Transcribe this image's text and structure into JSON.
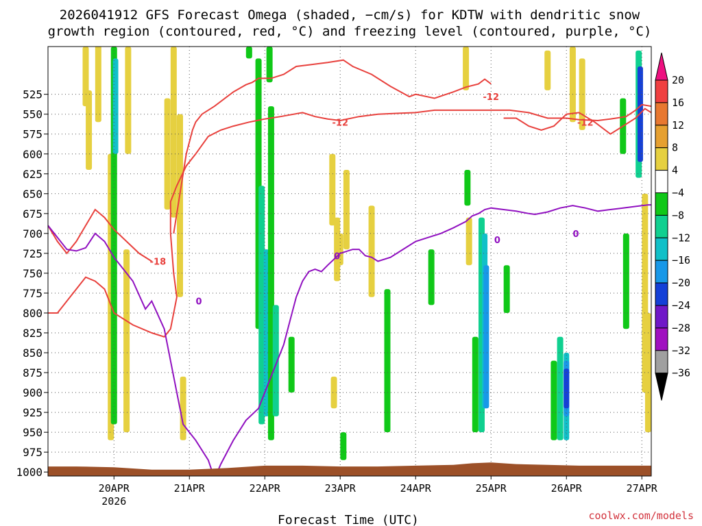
{
  "chart_data": {
    "type": "heatmap",
    "title_line1": "2026041912 GFS Forecast Omega (shaded, −cm/s) for KDTW with dendritic snow",
    "title_line2": "growth region (contoured, red, °C) and freezing level (contoured, purple, °C)",
    "xlabel": "Forecast Time (UTC)",
    "credit": "coolwx.com/models",
    "y_axis": {
      "unit": "hPa",
      "range": [
        1005,
        465
      ],
      "ticks": [
        525,
        550,
        575,
        600,
        625,
        650,
        675,
        700,
        725,
        750,
        775,
        800,
        825,
        850,
        875,
        900,
        925,
        950,
        975,
        1000
      ]
    },
    "x_axis": {
      "range_hours": [
        -9,
        183
      ],
      "ticks": [
        {
          "hour": 12,
          "label": "20APR",
          "sublabel": "2026"
        },
        {
          "hour": 36,
          "label": "21APR",
          "sublabel": ""
        },
        {
          "hour": 60,
          "label": "22APR",
          "sublabel": ""
        },
        {
          "hour": 84,
          "label": "23APR",
          "sublabel": ""
        },
        {
          "hour": 108,
          "label": "24APR",
          "sublabel": ""
        },
        {
          "hour": 132,
          "label": "25APR",
          "sublabel": ""
        },
        {
          "hour": 156,
          "label": "26APR",
          "sublabel": ""
        },
        {
          "hour": 180,
          "label": "27APR",
          "sublabel": ""
        }
      ]
    },
    "colorbar": {
      "labels": [
        "20",
        "16",
        "12",
        "8",
        "4",
        "−4",
        "−8",
        "−12",
        "−16",
        "−20",
        "−24",
        "−28",
        "−32",
        "−36"
      ],
      "colors": [
        "#ee1080",
        "#f04040",
        "#e87830",
        "#e6a030",
        "#e6d040",
        "#ffffff",
        "#10c818",
        "#10d090",
        "#10c0c8",
        "#1898e8",
        "#1440d8",
        "#7018c8",
        "#a010c0",
        "#a0a0a0",
        "#000000"
      ]
    },
    "omega_shading": [
      {
        "hour": 3,
        "p_top": 465,
        "p_bot": 540,
        "value": 5
      },
      {
        "hour": 4,
        "p_top": 520,
        "p_bot": 620,
        "value": 5
      },
      {
        "hour": 7,
        "p_top": 460,
        "p_bot": 560,
        "value": 6
      },
      {
        "hour": 11,
        "p_top": 600,
        "p_bot": 960,
        "value": 5
      },
      {
        "hour": 12,
        "p_top": 465,
        "p_bot": 940,
        "value": -7
      },
      {
        "hour": 12.5,
        "p_top": 480,
        "p_bot": 600,
        "value": -13
      },
      {
        "hour": 16,
        "p_top": 720,
        "p_bot": 950,
        "value": 5
      },
      {
        "hour": 16.5,
        "p_top": 465,
        "p_bot": 600,
        "value": 7
      },
      {
        "hour": 29,
        "p_top": 530,
        "p_bot": 670,
        "value": 6
      },
      {
        "hour": 31,
        "p_top": 465,
        "p_bot": 680,
        "value": 6
      },
      {
        "hour": 33,
        "p_top": 550,
        "p_bot": 780,
        "value": 5
      },
      {
        "hour": 34,
        "p_top": 880,
        "p_bot": 960,
        "value": 5
      },
      {
        "hour": 55,
        "p_top": 465,
        "p_bot": 480,
        "value": -6
      },
      {
        "hour": 58,
        "p_top": 480,
        "p_bot": 820,
        "value": -6
      },
      {
        "hour": 59,
        "p_top": 640,
        "p_bot": 940,
        "value": -8
      },
      {
        "hour": 60.5,
        "p_top": 720,
        "p_bot": 930,
        "value": -13
      },
      {
        "hour": 61.5,
        "p_top": 465,
        "p_bot": 510,
        "value": -6
      },
      {
        "hour": 62,
        "p_top": 540,
        "p_bot": 960,
        "value": -7
      },
      {
        "hour": 63.5,
        "p_top": 790,
        "p_bot": 930,
        "value": -9
      },
      {
        "hour": 68.5,
        "p_top": 830,
        "p_bot": 900,
        "value": -6
      },
      {
        "hour": 81.5,
        "p_top": 600,
        "p_bot": 690,
        "value": 5
      },
      {
        "hour": 84,
        "p_top": 700,
        "p_bot": 740,
        "value": 6
      },
      {
        "hour": 83,
        "p_top": 680,
        "p_bot": 760,
        "value": 5
      },
      {
        "hour": 86,
        "p_top": 620,
        "p_bot": 720,
        "value": 5
      },
      {
        "hour": 82,
        "p_top": 880,
        "p_bot": 920,
        "value": 5
      },
      {
        "hour": 85,
        "p_top": 950,
        "p_bot": 985,
        "value": -6
      },
      {
        "hour": 94,
        "p_top": 665,
        "p_bot": 780,
        "value": 5
      },
      {
        "hour": 99,
        "p_top": 770,
        "p_bot": 950,
        "value": -6
      },
      {
        "hour": 113,
        "p_top": 720,
        "p_bot": 790,
        "value": -6
      },
      {
        "hour": 124,
        "p_top": 465,
        "p_bot": 520,
        "value": 5
      },
      {
        "hour": 124.5,
        "p_top": 620,
        "p_bot": 665,
        "value": -6
      },
      {
        "hour": 125,
        "p_top": 680,
        "p_bot": 740,
        "value": 6
      },
      {
        "hour": 127,
        "p_top": 830,
        "p_bot": 950,
        "value": -6
      },
      {
        "hour": 129,
        "p_top": 680,
        "p_bot": 950,
        "value": -8
      },
      {
        "hour": 130,
        "p_top": 700,
        "p_bot": 920,
        "value": -14
      },
      {
        "hour": 130.5,
        "p_top": 740,
        "p_bot": 920,
        "value": -18
      },
      {
        "hour": 137,
        "p_top": 740,
        "p_bot": 800,
        "value": -7
      },
      {
        "hour": 150,
        "p_top": 470,
        "p_bot": 520,
        "value": 5
      },
      {
        "hour": 152,
        "p_top": 860,
        "p_bot": 960,
        "value": -6
      },
      {
        "hour": 154,
        "p_top": 830,
        "p_bot": 960,
        "value": -8
      },
      {
        "hour": 156,
        "p_top": 850,
        "p_bot": 960,
        "value": -14
      },
      {
        "hour": 156,
        "p_top": 860,
        "p_bot": 930,
        "value": -18
      },
      {
        "hour": 156,
        "p_top": 870,
        "p_bot": 920,
        "value": -22
      },
      {
        "hour": 158,
        "p_top": 465,
        "p_bot": 560,
        "value": 6
      },
      {
        "hour": 161,
        "p_top": 480,
        "p_bot": 570,
        "value": 6
      },
      {
        "hour": 174,
        "p_top": 530,
        "p_bot": 600,
        "value": -6
      },
      {
        "hour": 175,
        "p_top": 700,
        "p_bot": 820,
        "value": -7
      },
      {
        "hour": 179,
        "p_top": 470,
        "p_bot": 630,
        "value": -8
      },
      {
        "hour": 179.5,
        "p_top": 490,
        "p_bot": 610,
        "value": -22
      },
      {
        "hour": 181,
        "p_top": 650,
        "p_bot": 900,
        "value": 7
      },
      {
        "hour": 182,
        "p_top": 800,
        "p_bot": 950,
        "value": 5
      }
    ],
    "dgz_contours": [
      {
        "label": "-12",
        "label_at": [
          84,
          560
        ],
        "points": [
          [
            -9,
            800
          ],
          [
            -6,
            800
          ],
          [
            -3,
            785
          ],
          [
            0,
            770
          ],
          [
            3,
            755
          ],
          [
            6,
            760
          ],
          [
            9,
            770
          ],
          [
            12,
            800
          ],
          [
            18,
            815
          ],
          [
            24,
            825
          ],
          [
            28,
            830
          ],
          [
            30,
            820
          ],
          [
            32,
            780
          ],
          [
            31,
            750
          ],
          [
            30,
            700
          ],
          [
            30,
            660
          ],
          [
            32,
            640
          ],
          [
            35,
            615
          ],
          [
            38,
            600
          ],
          [
            42,
            578
          ],
          [
            46,
            570
          ],
          [
            50,
            565
          ],
          [
            55,
            560
          ],
          [
            60,
            556
          ],
          [
            65,
            553
          ],
          [
            72,
            548
          ],
          [
            76,
            553
          ],
          [
            80,
            556
          ],
          [
            84,
            558
          ],
          [
            90,
            553
          ],
          [
            96,
            550
          ],
          [
            102,
            549
          ],
          [
            108,
            548
          ],
          [
            114,
            545
          ],
          [
            120,
            545
          ],
          [
            126,
            545
          ],
          [
            132,
            545
          ],
          [
            138,
            545
          ],
          [
            144,
            548
          ],
          [
            150,
            555
          ],
          [
            156,
            555
          ],
          [
            160,
            557
          ],
          [
            166,
            558
          ],
          [
            170,
            556
          ],
          [
            175,
            553
          ],
          [
            178,
            545
          ],
          [
            180,
            538
          ],
          [
            183,
            540
          ]
        ]
      },
      {
        "label": "-12",
        "label_at": [
          132,
          528
        ],
        "points": [
          [
            31,
            700
          ],
          [
            33,
            650
          ],
          [
            35,
            600
          ],
          [
            37,
            570
          ],
          [
            38,
            560
          ],
          [
            40,
            550
          ],
          [
            44,
            540
          ],
          [
            50,
            522
          ],
          [
            54,
            513
          ],
          [
            56,
            510
          ],
          [
            58,
            505
          ],
          [
            62,
            505
          ],
          [
            66,
            500
          ],
          [
            70,
            490
          ],
          [
            74,
            488
          ],
          [
            80,
            485
          ],
          [
            85,
            482
          ],
          [
            88,
            490
          ],
          [
            94,
            500
          ],
          [
            100,
            515
          ],
          [
            106,
            528
          ],
          [
            108,
            525
          ],
          [
            114,
            530
          ],
          [
            120,
            522
          ],
          [
            124,
            516
          ],
          [
            128,
            512
          ],
          [
            130,
            506
          ],
          [
            132,
            512
          ]
        ]
      },
      {
        "label": "-18",
        "label_at": [
          26,
          735
        ],
        "points": [
          [
            -9,
            690
          ],
          [
            -6,
            710
          ],
          [
            -3,
            725
          ],
          [
            0,
            710
          ],
          [
            3,
            690
          ],
          [
            6,
            670
          ],
          [
            9,
            680
          ],
          [
            12,
            695
          ],
          [
            16,
            710
          ],
          [
            20,
            725
          ],
          [
            24,
            735
          ]
        ]
      },
      {
        "label": "-12",
        "label_at": [
          162,
          560
        ],
        "points": [
          [
            136,
            555
          ],
          [
            140,
            555
          ],
          [
            144,
            565
          ],
          [
            148,
            570
          ],
          [
            152,
            565
          ],
          [
            156,
            550
          ],
          [
            160,
            548
          ],
          [
            165,
            560
          ],
          [
            170,
            575
          ],
          [
            174,
            565
          ],
          [
            178,
            555
          ],
          [
            181,
            543
          ],
          [
            183,
            548
          ]
        ]
      }
    ],
    "freezing_level": {
      "label": "0",
      "label_points": [
        [
          83,
          728
        ],
        [
          39,
          785
        ],
        [
          134,
          708
        ],
        [
          159,
          700
        ]
      ],
      "points": [
        [
          -9,
          690
        ],
        [
          -6,
          705
        ],
        [
          -3,
          720
        ],
        [
          0,
          722
        ],
        [
          3,
          718
        ],
        [
          6,
          700
        ],
        [
          9,
          710
        ],
        [
          12,
          730
        ],
        [
          18,
          760
        ],
        [
          22,
          795
        ],
        [
          24,
          785
        ],
        [
          28,
          820
        ],
        [
          32,
          900
        ],
        [
          34,
          940
        ],
        [
          38,
          960
        ],
        [
          42,
          985
        ],
        [
          44,
          1008
        ],
        [
          46,
          990
        ],
        [
          50,
          960
        ],
        [
          54,
          935
        ],
        [
          58,
          920
        ],
        [
          62,
          880
        ],
        [
          64,
          860
        ],
        [
          66,
          840
        ],
        [
          68,
          810
        ],
        [
          70,
          780
        ],
        [
          72,
          760
        ],
        [
          74,
          748
        ],
        [
          76,
          745
        ],
        [
          78,
          748
        ],
        [
          80,
          740
        ],
        [
          84,
          725
        ],
        [
          88,
          720
        ],
        [
          90,
          720
        ],
        [
          92,
          728
        ],
        [
          94,
          730
        ],
        [
          96,
          735
        ],
        [
          100,
          730
        ],
        [
          104,
          720
        ],
        [
          108,
          710
        ],
        [
          112,
          705
        ],
        [
          116,
          700
        ],
        [
          120,
          693
        ],
        [
          124,
          685
        ],
        [
          126,
          678
        ],
        [
          128,
          675
        ],
        [
          130,
          670
        ],
        [
          132,
          668
        ],
        [
          136,
          670
        ],
        [
          140,
          672
        ],
        [
          144,
          675
        ],
        [
          146,
          676
        ],
        [
          150,
          673
        ],
        [
          154,
          668
        ],
        [
          158,
          665
        ],
        [
          162,
          668
        ],
        [
          166,
          672
        ],
        [
          170,
          670
        ],
        [
          174,
          668
        ],
        [
          178,
          666
        ],
        [
          182,
          664
        ],
        [
          183,
          664
        ]
      ]
    }
  }
}
